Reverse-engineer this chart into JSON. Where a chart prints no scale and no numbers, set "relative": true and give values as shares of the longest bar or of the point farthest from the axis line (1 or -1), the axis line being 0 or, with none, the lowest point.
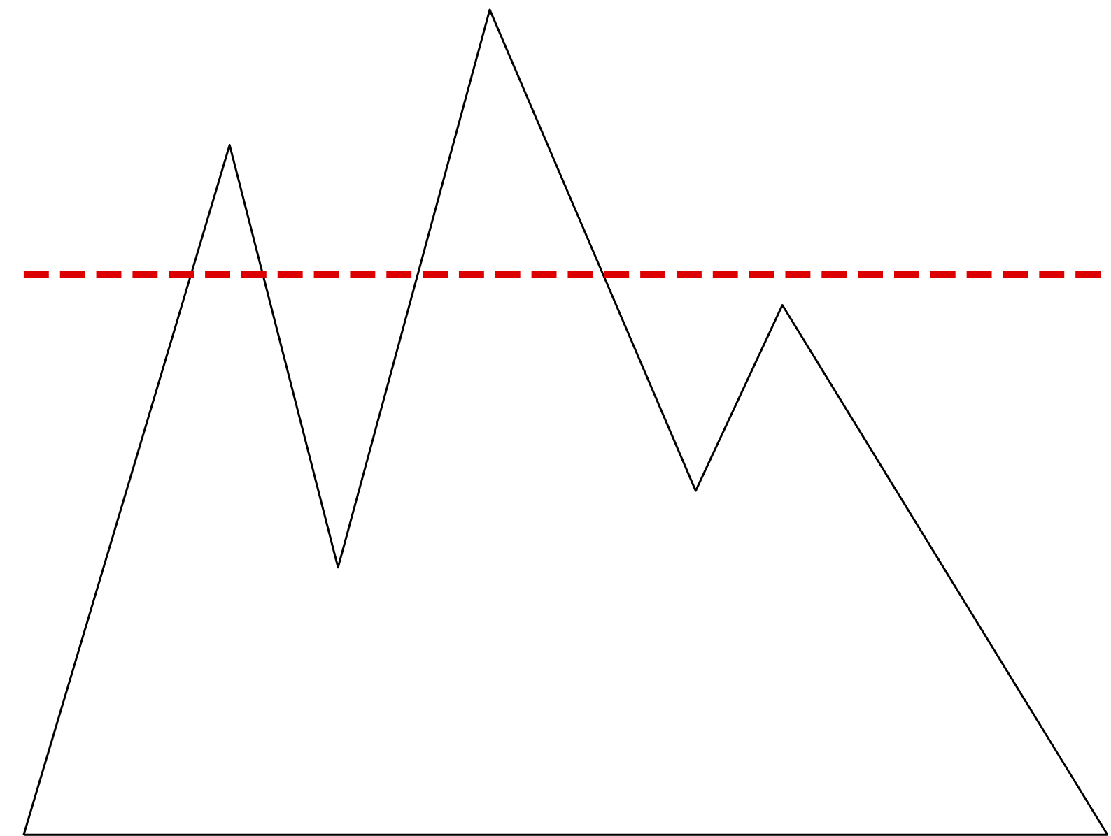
{
  "chart_data": {
    "type": "line",
    "relative": true,
    "categories": [
      null,
      null,
      null,
      null,
      null,
      null,
      null,
      null,
      null,
      null,
      null,
      null,
      null,
      null,
      null,
      null,
      null,
      null,
      null,
      null,
      null,
      null,
      null,
      null,
      null,
      null,
      null,
      null,
      null,
      null,
      null,
      null,
      null,
      null,
      null,
      null,
      null,
      null,
      null,
      null,
      null,
      null,
      null,
      null,
      null,
      null,
      null,
      null,
      null,
      null,
      null,
      null,
      null,
      null,
      null,
      null,
      null,
      null,
      null,
      null,
      null,
      null,
      null,
      null,
      null,
      null,
      null,
      null,
      null,
      null,
      null,
      null,
      null,
      null,
      null,
      null,
      null,
      null,
      null,
      null,
      null,
      null,
      null,
      null,
      null,
      null,
      null,
      null,
      null,
      null,
      null,
      null,
      null,
      null,
      null,
      null,
      null,
      null,
      null,
      null,
      null
    ],
    "series": [
      {
        "color": "#000000",
        "values": [
          0,
          null,
          null,
          null,
          null,
          null,
          null,
          null,
          null,
          null,
          null,
          null,
          null,
          null,
          null,
          null,
          null,
          null,
          null,
          0.836,
          null,
          null,
          null,
          null,
          null,
          null,
          null,
          null,
          null,
          0.324,
          null,
          null,
          null,
          null,
          null,
          null,
          null,
          null,
          null,
          null,
          null,
          null,
          null,
          1,
          null,
          null,
          null,
          null,
          null,
          null,
          null,
          null,
          null,
          null,
          null,
          null,
          null,
          null,
          null,
          null,
          null,
          null,
          0.417,
          null,
          null,
          null,
          null,
          null,
          null,
          null,
          0.642,
          null,
          null,
          null,
          null,
          null,
          null,
          null,
          null,
          null,
          null,
          null,
          null,
          null,
          null,
          null,
          null,
          null,
          null,
          null,
          null,
          null,
          null,
          null,
          null,
          null,
          null,
          null,
          null,
          null,
          0
        ]
      }
    ],
    "ref_lines": [
      {
        "axis": "y",
        "value": 0.679,
        "color": "#dd0000",
        "line_style": "dashed"
      }
    ]
  }
}
